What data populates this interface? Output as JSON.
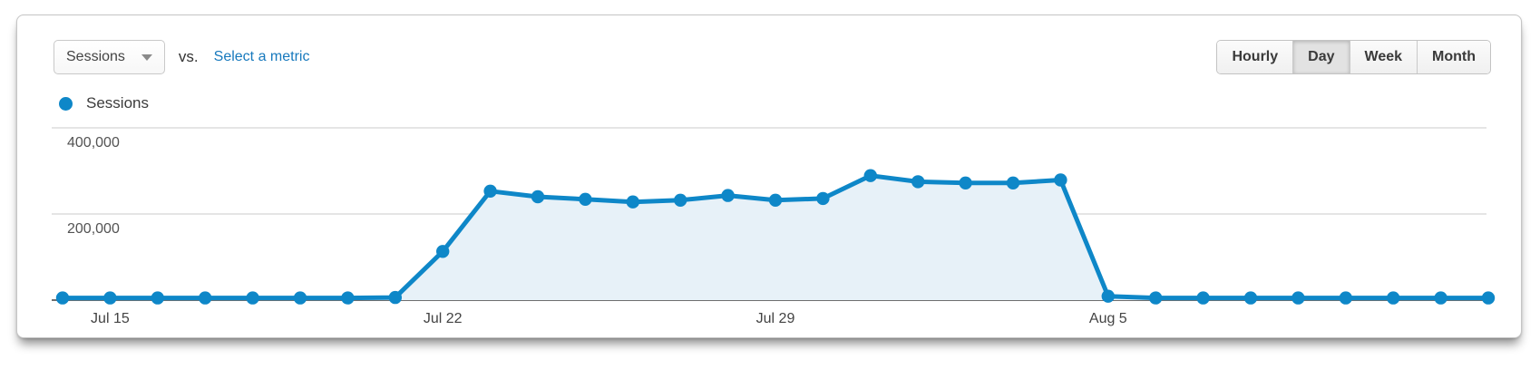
{
  "header": {
    "metric_selector": {
      "label": "Sessions"
    },
    "vs_label": "vs.",
    "select_metric_link": "Select a metric",
    "granularity": {
      "selected": "Day",
      "options": [
        {
          "label": "Hourly",
          "selected": false
        },
        {
          "label": "Day",
          "selected": true
        },
        {
          "label": "Week",
          "selected": false
        },
        {
          "label": "Month",
          "selected": false
        }
      ]
    }
  },
  "legend": {
    "label": "Sessions",
    "color": "#0e87c8"
  },
  "chart_data": {
    "type": "line",
    "title": "Sessions",
    "xlabel": "",
    "ylabel": "",
    "grid": true,
    "legend_position": "top-left",
    "ylim": [
      0,
      430000
    ],
    "x": [
      "Jul 14",
      "Jul 15",
      "Jul 16",
      "Jul 17",
      "Jul 18",
      "Jul 19",
      "Jul 20",
      "Jul 21",
      "Jul 22",
      "Jul 23",
      "Jul 24",
      "Jul 25",
      "Jul 26",
      "Jul 27",
      "Jul 28",
      "Jul 29",
      "Jul 30",
      "Jul 31",
      "Aug 1",
      "Aug 2",
      "Aug 3",
      "Aug 4",
      "Aug 5",
      "Aug 6",
      "Aug 7",
      "Aug 8",
      "Aug 9",
      "Aug 10",
      "Aug 11",
      "Aug 12",
      "Aug 13"
    ],
    "series": [
      {
        "name": "Sessions",
        "color": "#0e87c8",
        "fill": "#e7f1f8",
        "values": [
          5000,
          5000,
          5000,
          5000,
          5000,
          5000,
          5000,
          6000,
          113000,
          253000,
          240000,
          234000,
          228000,
          232000,
          243000,
          232000,
          236000,
          289000,
          275000,
          272000,
          272000,
          279000,
          9000,
          5000,
          5000,
          5000,
          5000,
          5000,
          5000,
          5000,
          5000
        ]
      }
    ],
    "x_tick_labels": [
      {
        "index": 1,
        "label": "Jul 15"
      },
      {
        "index": 8,
        "label": "Jul 22"
      },
      {
        "index": 15,
        "label": "Jul 29"
      },
      {
        "index": 22,
        "label": "Aug 5"
      }
    ],
    "y_ticks": [
      {
        "value": 400000,
        "label": "400,000"
      },
      {
        "value": 200000,
        "label": "200,000"
      }
    ]
  }
}
